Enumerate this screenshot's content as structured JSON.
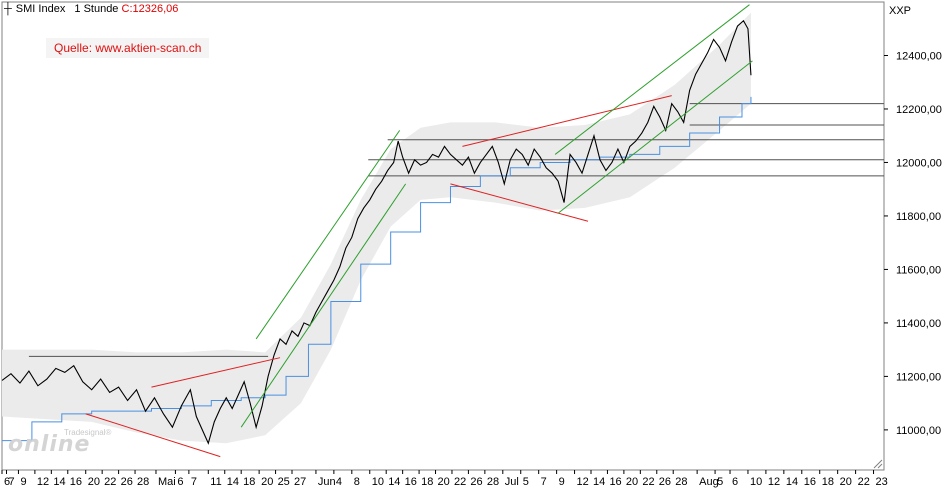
{
  "header": {
    "instrument": "SMI Index",
    "interval": "1 Stunde",
    "close_label": "C:",
    "close_value": "12326,06"
  },
  "source_label": "Quelle: www.aktien-scan.ch",
  "unit_label": "XXP",
  "logo": {
    "big": "online",
    "small": "Tradesignal®"
  },
  "colors": {
    "price": "#000000",
    "moving_average": "#4a90e2",
    "band": "#ebebeb",
    "channel": "#2ea02e",
    "triangle": "#e02020",
    "level": "#505050",
    "source_text": "#e01010"
  },
  "chart_data": {
    "type": "line",
    "title": "",
    "xlabel": "",
    "ylabel": "",
    "ylim": [
      10850,
      12600
    ],
    "y_ticks": [
      11000,
      11200,
      11400,
      11600,
      11800,
      12000,
      12200,
      12400
    ],
    "y_tick_labels": [
      "11000,00",
      "11200,00",
      "11400,00",
      "11600,00",
      "11800,00",
      "12000,00",
      "12200,00",
      "12400,00"
    ],
    "x_tick_labels": [
      "6",
      "7",
      "9",
      "12",
      "14",
      "16",
      "20",
      "22",
      "26",
      "28",
      "Mai",
      "6",
      "7",
      "11",
      "14",
      "18",
      "20",
      "25",
      "27",
      "Jun",
      "4",
      "8",
      "10",
      "14",
      "16",
      "18",
      "20",
      "22",
      "26",
      "28",
      "Jul",
      "5",
      "7",
      "9",
      "12",
      "14",
      "16",
      "20",
      "22",
      "26",
      "28",
      "Aug",
      "5",
      "6",
      "10",
      "12",
      "14",
      "16",
      "18",
      "20",
      "22",
      "23"
    ],
    "x_tick_pos": [
      0,
      3,
      11,
      22,
      33,
      44,
      56,
      67,
      78,
      89,
      103,
      116,
      125,
      138,
      149,
      160,
      172,
      183,
      194,
      210,
      222,
      234,
      246,
      257,
      268,
      279,
      290,
      301,
      312,
      323,
      335,
      347,
      359,
      371,
      383,
      394,
      405,
      416,
      427,
      438,
      449,
      465,
      477,
      487,
      499,
      511,
      523,
      535,
      547,
      559,
      571,
      583
    ],
    "x_range": [
      0,
      590
    ],
    "series": [
      {
        "name": "",
        "style": "price",
        "points": [
          [
            0,
            11185
          ],
          [
            6,
            11210
          ],
          [
            12,
            11175
          ],
          [
            18,
            11220
          ],
          [
            24,
            11165
          ],
          [
            30,
            11190
          ],
          [
            36,
            11230
          ],
          [
            42,
            11215
          ],
          [
            48,
            11240
          ],
          [
            54,
            11180
          ],
          [
            60,
            11150
          ],
          [
            66,
            11190
          ],
          [
            72,
            11140
          ],
          [
            78,
            11160
          ],
          [
            84,
            11110
          ],
          [
            90,
            11150
          ],
          [
            96,
            11070
          ],
          [
            102,
            11120
          ],
          [
            108,
            11060
          ],
          [
            114,
            11010
          ],
          [
            120,
            11090
          ],
          [
            126,
            11150
          ],
          [
            130,
            11050
          ],
          [
            134,
            11000
          ],
          [
            138,
            10950
          ],
          [
            142,
            11030
          ],
          [
            146,
            11080
          ],
          [
            150,
            11120
          ],
          [
            154,
            11080
          ],
          [
            158,
            11130
          ],
          [
            162,
            11180
          ],
          [
            166,
            11100
          ],
          [
            170,
            11010
          ],
          [
            174,
            11090
          ],
          [
            178,
            11200
          ],
          [
            182,
            11280
          ],
          [
            186,
            11340
          ],
          [
            190,
            11320
          ],
          [
            194,
            11370
          ],
          [
            198,
            11350
          ],
          [
            202,
            11400
          ],
          [
            206,
            11390
          ],
          [
            210,
            11440
          ],
          [
            214,
            11480
          ],
          [
            218,
            11520
          ],
          [
            222,
            11560
          ],
          [
            226,
            11610
          ],
          [
            230,
            11680
          ],
          [
            234,
            11720
          ],
          [
            238,
            11790
          ],
          [
            242,
            11830
          ],
          [
            246,
            11860
          ],
          [
            250,
            11900
          ],
          [
            254,
            11930
          ],
          [
            258,
            11970
          ],
          [
            262,
            12000
          ],
          [
            265,
            12080
          ],
          [
            268,
            12020
          ],
          [
            272,
            11960
          ],
          [
            276,
            12010
          ],
          [
            280,
            11990
          ],
          [
            284,
            12000
          ],
          [
            288,
            12030
          ],
          [
            292,
            12020
          ],
          [
            296,
            12060
          ],
          [
            300,
            12030
          ],
          [
            304,
            12010
          ],
          [
            308,
            11990
          ],
          [
            312,
            12020
          ],
          [
            316,
            11960
          ],
          [
            320,
            12000
          ],
          [
            324,
            12030
          ],
          [
            328,
            12060
          ],
          [
            332,
            12000
          ],
          [
            336,
            11920
          ],
          [
            340,
            12010
          ],
          [
            344,
            12050
          ],
          [
            348,
            12030
          ],
          [
            352,
            11990
          ],
          [
            356,
            12050
          ],
          [
            360,
            12020
          ],
          [
            364,
            11980
          ],
          [
            368,
            11960
          ],
          [
            372,
            11930
          ],
          [
            376,
            11850
          ],
          [
            380,
            12030
          ],
          [
            384,
            12000
          ],
          [
            388,
            11960
          ],
          [
            392,
            12030
          ],
          [
            396,
            12100
          ],
          [
            400,
            12010
          ],
          [
            404,
            11970
          ],
          [
            408,
            12000
          ],
          [
            412,
            12050
          ],
          [
            416,
            12000
          ],
          [
            420,
            12060
          ],
          [
            424,
            12080
          ],
          [
            428,
            12110
          ],
          [
            432,
            12150
          ],
          [
            436,
            12210
          ],
          [
            440,
            12170
          ],
          [
            444,
            12120
          ],
          [
            448,
            12220
          ],
          [
            452,
            12190
          ],
          [
            456,
            12150
          ],
          [
            460,
            12270
          ],
          [
            464,
            12330
          ],
          [
            468,
            12370
          ],
          [
            472,
            12410
          ],
          [
            476,
            12460
          ],
          [
            480,
            12430
          ],
          [
            484,
            12380
          ],
          [
            488,
            12450
          ],
          [
            492,
            12510
          ],
          [
            496,
            12530
          ],
          [
            499,
            12500
          ],
          [
            501,
            12326
          ]
        ]
      },
      {
        "name": "",
        "style": "moving_average",
        "points": [
          [
            0,
            10960
          ],
          [
            20,
            11030
          ],
          [
            40,
            11060
          ],
          [
            60,
            11070
          ],
          [
            80,
            11070
          ],
          [
            100,
            11080
          ],
          [
            120,
            11090
          ],
          [
            140,
            11110
          ],
          [
            160,
            11120
          ],
          [
            176,
            11130
          ],
          [
            190,
            11200
          ],
          [
            205,
            11320
          ],
          [
            220,
            11480
          ],
          [
            240,
            11620
          ],
          [
            260,
            11740
          ],
          [
            280,
            11850
          ],
          [
            300,
            11910
          ],
          [
            320,
            11950
          ],
          [
            340,
            11980
          ],
          [
            360,
            12000
          ],
          [
            380,
            12010
          ],
          [
            400,
            12020
          ],
          [
            420,
            12030
          ],
          [
            440,
            12060
          ],
          [
            460,
            12110
          ],
          [
            480,
            12170
          ],
          [
            495,
            12220
          ],
          [
            501,
            12245
          ]
        ]
      }
    ],
    "band": {
      "style": "band",
      "upper": [
        [
          0,
          11300
        ],
        [
          30,
          11300
        ],
        [
          60,
          11300
        ],
        [
          90,
          11290
        ],
        [
          120,
          11290
        ],
        [
          150,
          11300
        ],
        [
          176,
          11290
        ],
        [
          200,
          11420
        ],
        [
          220,
          11620
        ],
        [
          240,
          11860
        ],
        [
          260,
          12050
        ],
        [
          280,
          12130
        ],
        [
          300,
          12150
        ],
        [
          330,
          12150
        ],
        [
          360,
          12130
        ],
        [
          390,
          12140
        ],
        [
          420,
          12180
        ],
        [
          450,
          12290
        ],
        [
          480,
          12440
        ],
        [
          501,
          12560
        ]
      ],
      "lower": [
        [
          0,
          11050
        ],
        [
          30,
          11040
        ],
        [
          60,
          11030
        ],
        [
          90,
          10990
        ],
        [
          120,
          10960
        ],
        [
          150,
          10950
        ],
        [
          176,
          10980
        ],
        [
          200,
          11100
        ],
        [
          220,
          11300
        ],
        [
          240,
          11560
        ],
        [
          260,
          11760
        ],
        [
          280,
          11860
        ],
        [
          300,
          11870
        ],
        [
          330,
          11850
        ],
        [
          360,
          11820
        ],
        [
          390,
          11830
        ],
        [
          420,
          11870
        ],
        [
          450,
          11980
        ],
        [
          480,
          12120
        ],
        [
          501,
          12220
        ]
      ]
    },
    "horizontal_levels": [
      {
        "y": 11275,
        "x_start": 18,
        "x_end": 178,
        "style": "level"
      },
      {
        "y": 12085,
        "x_start": 258,
        "x_end": 590,
        "style": "level"
      },
      {
        "y": 12220,
        "x_start": 460,
        "x_end": 590,
        "style": "level"
      },
      {
        "y": 12140,
        "x_start": 460,
        "x_end": 590,
        "style": "level"
      },
      {
        "y": 12010,
        "x_start": 245,
        "x_end": 590,
        "style": "level"
      },
      {
        "y": 11950,
        "x_start": 245,
        "x_end": 590,
        "style": "level"
      }
    ],
    "trend_lines": [
      {
        "from": [
          56,
          11060
        ],
        "to": [
          146,
          10900
        ],
        "style": "triangle"
      },
      {
        "from": [
          100,
          11160
        ],
        "to": [
          186,
          11270
        ],
        "style": "triangle"
      },
      {
        "from": [
          170,
          11340
        ],
        "to": [
          266,
          12120
        ],
        "style": "channel"
      },
      {
        "from": [
          160,
          11010
        ],
        "to": [
          270,
          11920
        ],
        "style": "channel"
      },
      {
        "from": [
          308,
          12060
        ],
        "to": [
          448,
          12250
        ],
        "style": "triangle"
      },
      {
        "from": [
          300,
          11920
        ],
        "to": [
          392,
          11780
        ],
        "style": "triangle"
      },
      {
        "from": [
          370,
          12030
        ],
        "to": [
          500,
          12590
        ],
        "style": "channel"
      },
      {
        "from": [
          372,
          11810
        ],
        "to": [
          502,
          12380
        ],
        "style": "channel"
      }
    ]
  }
}
